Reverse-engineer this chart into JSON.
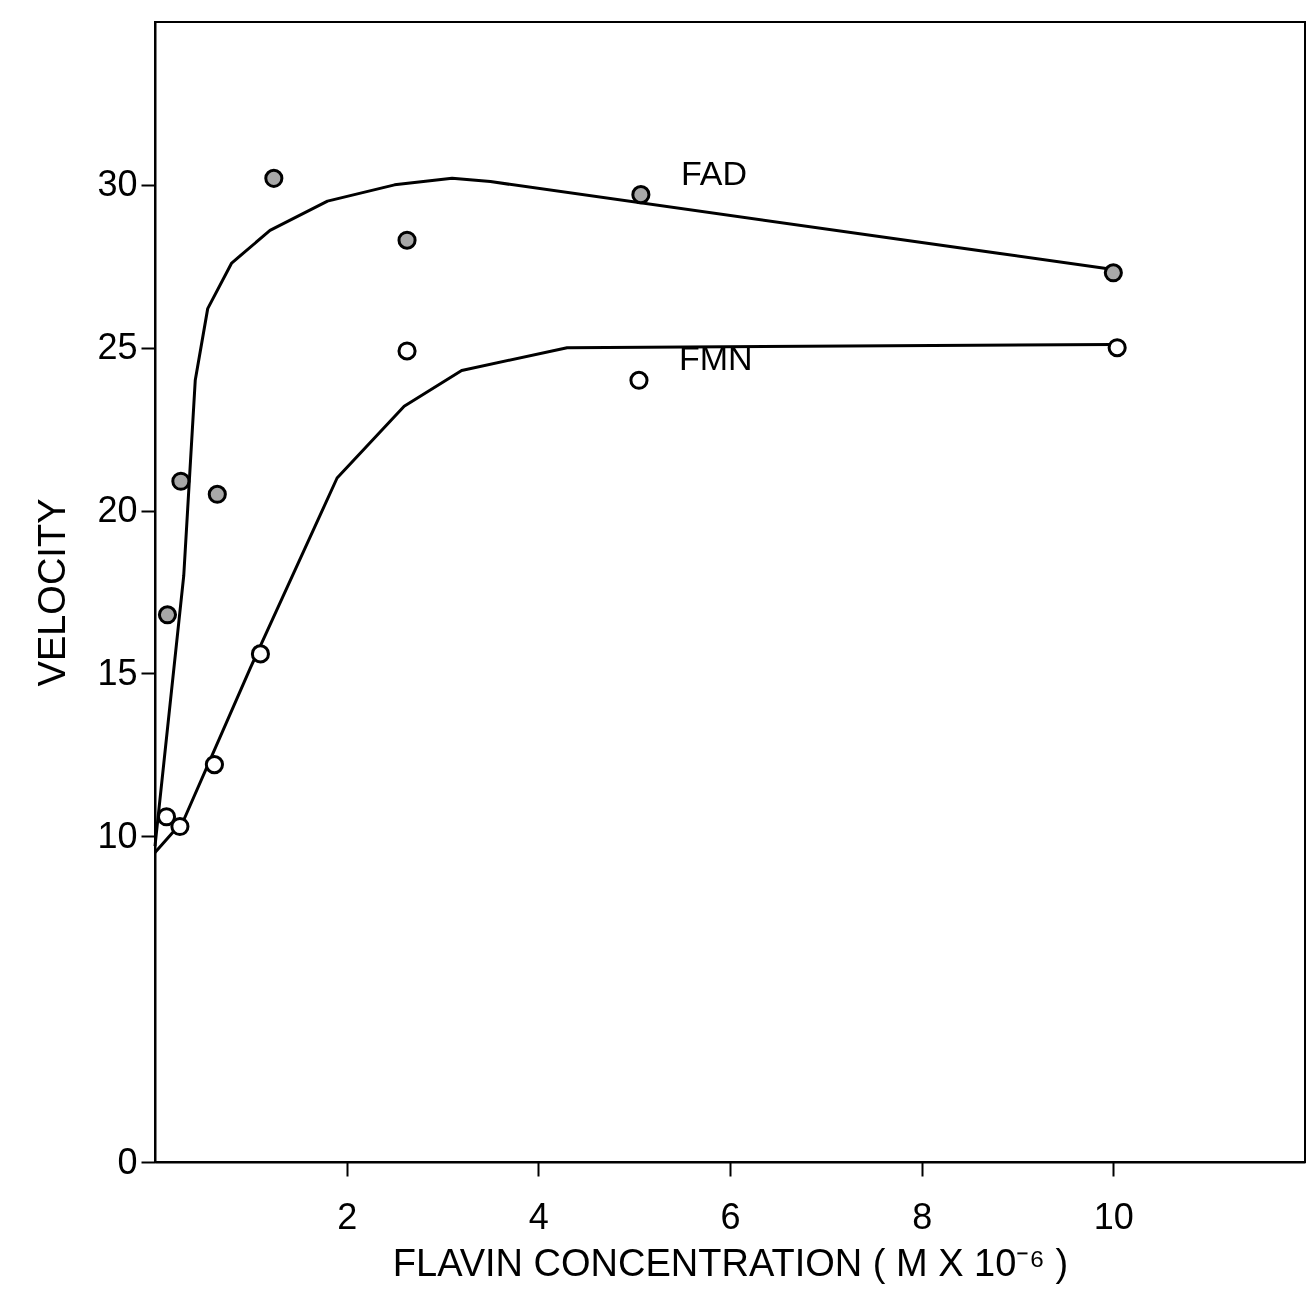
{
  "chart_data": {
    "type": "scatter",
    "xlabel": "FLAVIN  CONCENTRATION  ( M X 10⁻⁶ )",
    "ylabel": "VELOCITY",
    "xlim": [
      0,
      12
    ],
    "xticks": [
      2,
      4,
      6,
      8,
      10
    ],
    "ylim": [
      0,
      35
    ],
    "yticks": [
      0,
      10,
      15,
      20,
      25,
      30
    ],
    "grid": false,
    "legend": false,
    "marker": "circle",
    "line_style": "solid",
    "series": [
      {
        "name": "FAD",
        "color": "#a8a8a8",
        "x": [
          0.13,
          0.27,
          0.65,
          1.24,
          2.63,
          5.07,
          10.0
        ],
        "values": [
          16.8,
          20.9,
          20.5,
          30.2,
          28.3,
          29.7,
          27.3
        ]
      },
      {
        "type": "line",
        "marker": "none",
        "color": "#000000",
        "x": [
          0,
          0.3,
          0.42,
          0.55,
          0.8,
          1.2,
          1.8,
          2.5,
          3.1,
          3.5,
          10
        ],
        "values": [
          9.7,
          18,
          24,
          26.2,
          27.6,
          28.6,
          29.5,
          30.0,
          30.2,
          30.1,
          27.4
        ]
      },
      {
        "name": "FMN",
        "color": "#ffffff",
        "x": [
          0.12,
          0.26,
          0.62,
          1.1,
          2.63,
          5.05,
          10.04
        ],
        "values": [
          10.6,
          10.3,
          12.2,
          15.6,
          24.9,
          24.0,
          25.0
        ]
      },
      {
        "type": "line",
        "marker": "none",
        "color": "#000000",
        "x": [
          0,
          0.3,
          1.0,
          1.9,
          2.6,
          3.2,
          4.3,
          10
        ],
        "values": [
          9.5,
          10.5,
          15.2,
          21.0,
          23.2,
          24.3,
          25.0,
          25.1
        ]
      }
    ]
  }
}
